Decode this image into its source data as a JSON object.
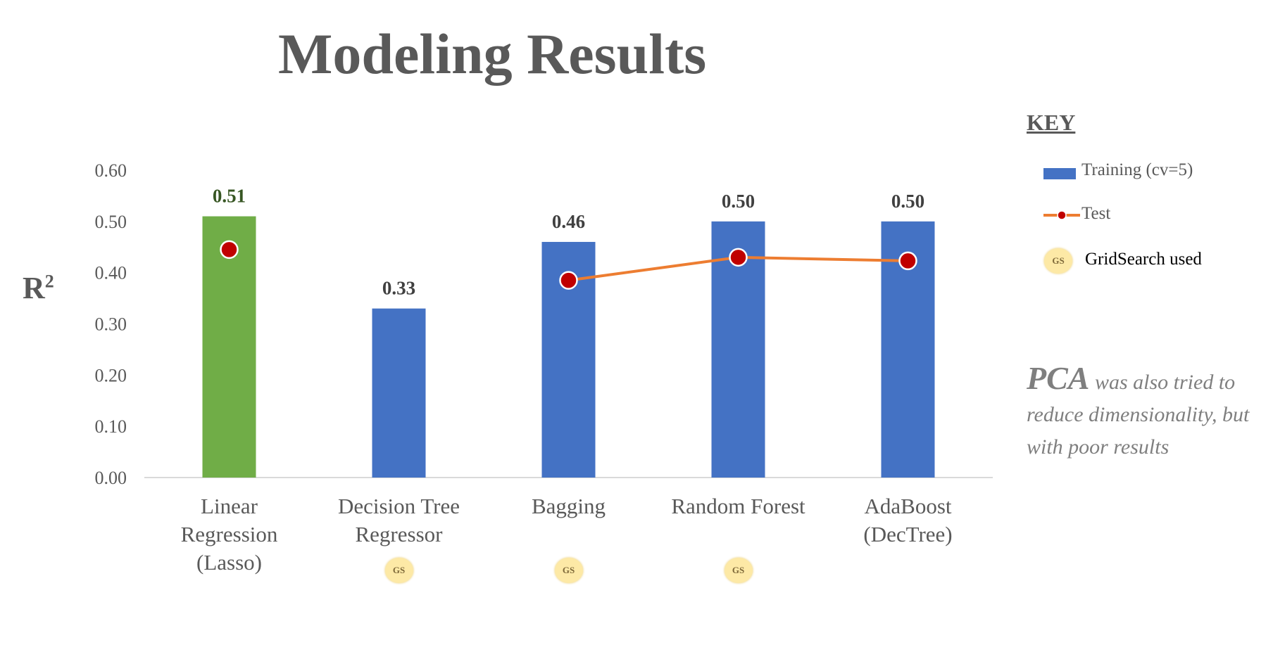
{
  "title": "Modeling Results",
  "key": {
    "title": "KEY",
    "training_label": "Training (cv=5)",
    "test_label": "Test",
    "gs_badge": "GS",
    "gs_label": "GridSearch used"
  },
  "note": {
    "pca": "PCA",
    "rest": " was also tried to reduce dimensionality, but with poor results"
  },
  "chart_data": {
    "type": "bar",
    "ylabel": "R",
    "ylabel_sup": "2",
    "ylim": [
      0,
      0.6
    ],
    "yticks": [
      "0.00",
      "0.10",
      "0.20",
      "0.30",
      "0.40",
      "0.50",
      "0.60"
    ],
    "categories": [
      [
        "Linear",
        "Regression",
        "(Lasso)"
      ],
      [
        "Decision Tree",
        "Regressor"
      ],
      [
        "Bagging"
      ],
      [
        "Random Forest"
      ],
      [
        "AdaBoost",
        "(DecTree)"
      ]
    ],
    "series": [
      {
        "name": "Training (cv=5)",
        "type": "bar",
        "values": [
          0.51,
          0.33,
          0.46,
          0.5,
          0.5
        ],
        "labels": [
          "0.51",
          "0.33",
          "0.46",
          "0.50",
          "0.50"
        ],
        "colors": [
          "#70ad47",
          "#4472c4",
          "#4472c4",
          "#4472c4",
          "#4472c4"
        ],
        "label_colors": [
          "#375623",
          "#404040",
          "#404040",
          "#404040",
          "#404040"
        ]
      },
      {
        "name": "Test",
        "type": "line",
        "values": [
          0.445,
          null,
          0.385,
          0.43,
          0.423
        ],
        "line_from_index": 2,
        "line_color": "#ed7d31",
        "marker_color": "#c00000"
      }
    ],
    "gridsearch_used": [
      false,
      true,
      true,
      true,
      false
    ],
    "legend": "right",
    "grid": false
  }
}
